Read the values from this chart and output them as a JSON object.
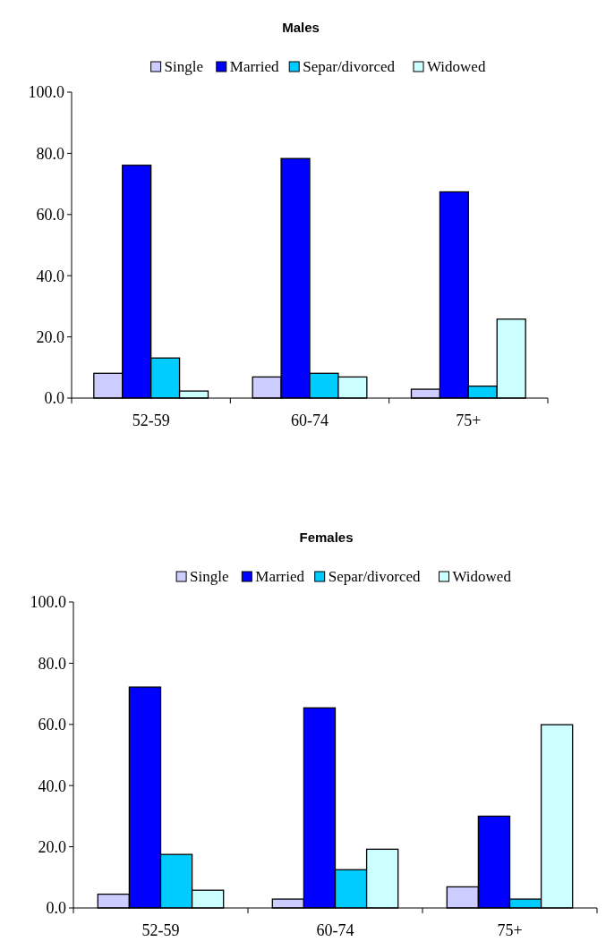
{
  "chart_data": [
    {
      "type": "bar",
      "title": "Males",
      "categories": [
        "52-59",
        "60-74",
        "75+"
      ],
      "series": [
        {
          "name": "Single",
          "color": "#ccccff",
          "values": [
            8.1,
            6.9,
            2.9
          ]
        },
        {
          "name": "Married",
          "color": "#0000ff",
          "values": [
            76.1,
            78.3,
            67.4
          ]
        },
        {
          "name": "Separ/divorced",
          "color": "#00ccff",
          "values": [
            13.1,
            8.1,
            3.9
          ]
        },
        {
          "name": "Widowed",
          "color": "#ccffff",
          "values": [
            2.3,
            6.9,
            25.8
          ]
        }
      ],
      "ylim": [
        0,
        100
      ],
      "yticks": [
        {
          "value": 0,
          "label": "0.0"
        },
        {
          "value": 20,
          "label": "20.0"
        },
        {
          "value": 40,
          "label": "40.0"
        },
        {
          "value": 60,
          "label": "60.0"
        },
        {
          "value": 80,
          "label": "80.0"
        },
        {
          "value": 100,
          "label": "100.0"
        }
      ],
      "grid": false,
      "legend": "top"
    },
    {
      "type": "bar",
      "title": "Females",
      "categories": [
        "52-59",
        "60-74",
        "75+"
      ],
      "series": [
        {
          "name": "Single",
          "color": "#ccccff",
          "values": [
            4.5,
            2.9,
            6.9
          ]
        },
        {
          "name": "Married",
          "color": "#0000ff",
          "values": [
            72.2,
            65.4,
            30.0
          ]
        },
        {
          "name": "Separ/divorced",
          "color": "#00ccff",
          "values": [
            17.5,
            12.5,
            2.9
          ]
        },
        {
          "name": "Widowed",
          "color": "#ccffff",
          "values": [
            5.8,
            19.2,
            59.9
          ]
        }
      ],
      "ylim": [
        0,
        100
      ],
      "yticks": [
        {
          "value": 0,
          "label": "0.0"
        },
        {
          "value": 20,
          "label": "20.0"
        },
        {
          "value": 40,
          "label": "40.0"
        },
        {
          "value": 60,
          "label": "60.0"
        },
        {
          "value": 80,
          "label": "80.0"
        },
        {
          "value": 100,
          "label": "100.0"
        }
      ],
      "grid": false,
      "legend": "top"
    }
  ]
}
